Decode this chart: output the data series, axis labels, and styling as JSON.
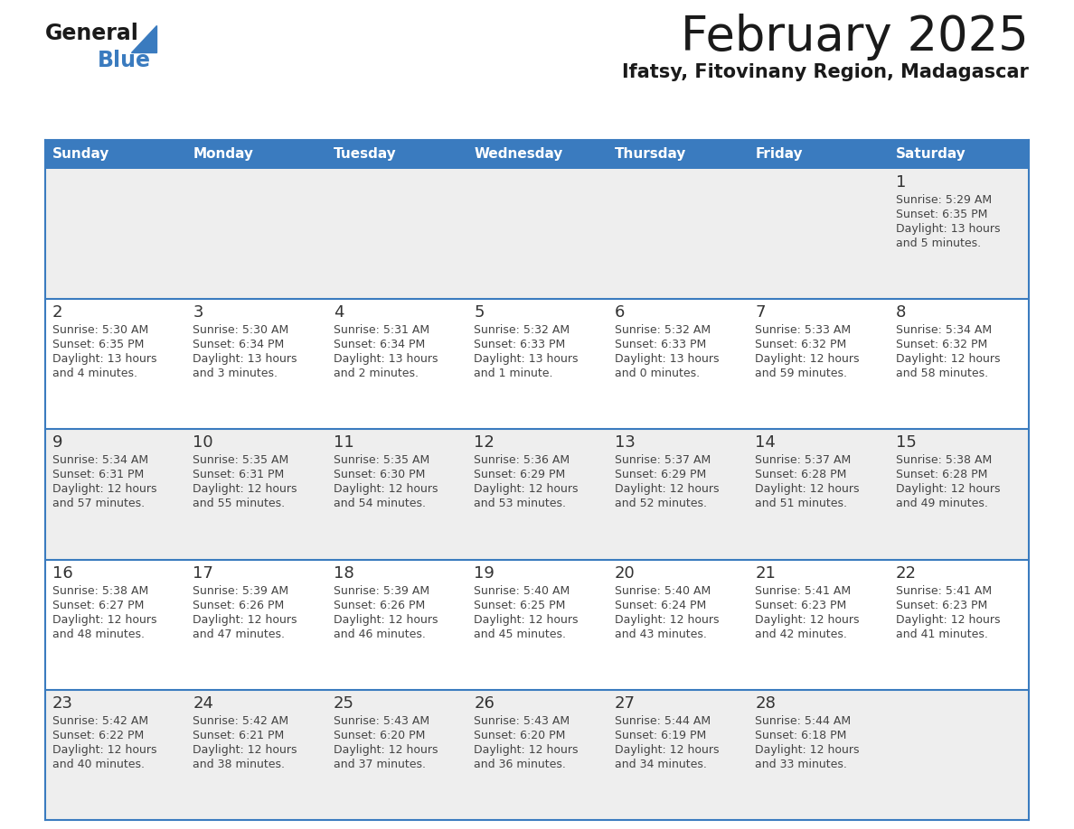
{
  "title": "February 2025",
  "subtitle": "Ifatsy, Fitovinany Region, Madagascar",
  "header_color": "#3a7bbf",
  "header_text_color": "#ffffff",
  "days_of_week": [
    "Sunday",
    "Monday",
    "Tuesday",
    "Wednesday",
    "Thursday",
    "Friday",
    "Saturday"
  ],
  "cell_bg_row0": "#eeeeee",
  "cell_bg_row1": "#ffffff",
  "cell_bg_row2": "#eeeeee",
  "cell_bg_row3": "#ffffff",
  "cell_bg_row4": "#eeeeee",
  "border_color": "#3a7bbf",
  "separator_color": "#3a7bbf",
  "day_num_color": "#333333",
  "text_color": "#444444",
  "calendar_data": [
    [
      null,
      null,
      null,
      null,
      null,
      null,
      {
        "day": "1",
        "sunrise": "5:29 AM",
        "sunset": "6:35 PM",
        "daylight_line1": "13 hours",
        "daylight_line2": "and 5 minutes."
      }
    ],
    [
      {
        "day": "2",
        "sunrise": "5:30 AM",
        "sunset": "6:35 PM",
        "daylight_line1": "13 hours",
        "daylight_line2": "and 4 minutes."
      },
      {
        "day": "3",
        "sunrise": "5:30 AM",
        "sunset": "6:34 PM",
        "daylight_line1": "13 hours",
        "daylight_line2": "and 3 minutes."
      },
      {
        "day": "4",
        "sunrise": "5:31 AM",
        "sunset": "6:34 PM",
        "daylight_line1": "13 hours",
        "daylight_line2": "and 2 minutes."
      },
      {
        "day": "5",
        "sunrise": "5:32 AM",
        "sunset": "6:33 PM",
        "daylight_line1": "13 hours",
        "daylight_line2": "and 1 minute."
      },
      {
        "day": "6",
        "sunrise": "5:32 AM",
        "sunset": "6:33 PM",
        "daylight_line1": "13 hours",
        "daylight_line2": "and 0 minutes."
      },
      {
        "day": "7",
        "sunrise": "5:33 AM",
        "sunset": "6:32 PM",
        "daylight_line1": "12 hours",
        "daylight_line2": "and 59 minutes."
      },
      {
        "day": "8",
        "sunrise": "5:34 AM",
        "sunset": "6:32 PM",
        "daylight_line1": "12 hours",
        "daylight_line2": "and 58 minutes."
      }
    ],
    [
      {
        "day": "9",
        "sunrise": "5:34 AM",
        "sunset": "6:31 PM",
        "daylight_line1": "12 hours",
        "daylight_line2": "and 57 minutes."
      },
      {
        "day": "10",
        "sunrise": "5:35 AM",
        "sunset": "6:31 PM",
        "daylight_line1": "12 hours",
        "daylight_line2": "and 55 minutes."
      },
      {
        "day": "11",
        "sunrise": "5:35 AM",
        "sunset": "6:30 PM",
        "daylight_line1": "12 hours",
        "daylight_line2": "and 54 minutes."
      },
      {
        "day": "12",
        "sunrise": "5:36 AM",
        "sunset": "6:29 PM",
        "daylight_line1": "12 hours",
        "daylight_line2": "and 53 minutes."
      },
      {
        "day": "13",
        "sunrise": "5:37 AM",
        "sunset": "6:29 PM",
        "daylight_line1": "12 hours",
        "daylight_line2": "and 52 minutes."
      },
      {
        "day": "14",
        "sunrise": "5:37 AM",
        "sunset": "6:28 PM",
        "daylight_line1": "12 hours",
        "daylight_line2": "and 51 minutes."
      },
      {
        "day": "15",
        "sunrise": "5:38 AM",
        "sunset": "6:28 PM",
        "daylight_line1": "12 hours",
        "daylight_line2": "and 49 minutes."
      }
    ],
    [
      {
        "day": "16",
        "sunrise": "5:38 AM",
        "sunset": "6:27 PM",
        "daylight_line1": "12 hours",
        "daylight_line2": "and 48 minutes."
      },
      {
        "day": "17",
        "sunrise": "5:39 AM",
        "sunset": "6:26 PM",
        "daylight_line1": "12 hours",
        "daylight_line2": "and 47 minutes."
      },
      {
        "day": "18",
        "sunrise": "5:39 AM",
        "sunset": "6:26 PM",
        "daylight_line1": "12 hours",
        "daylight_line2": "and 46 minutes."
      },
      {
        "day": "19",
        "sunrise": "5:40 AM",
        "sunset": "6:25 PM",
        "daylight_line1": "12 hours",
        "daylight_line2": "and 45 minutes."
      },
      {
        "day": "20",
        "sunrise": "5:40 AM",
        "sunset": "6:24 PM",
        "daylight_line1": "12 hours",
        "daylight_line2": "and 43 minutes."
      },
      {
        "day": "21",
        "sunrise": "5:41 AM",
        "sunset": "6:23 PM",
        "daylight_line1": "12 hours",
        "daylight_line2": "and 42 minutes."
      },
      {
        "day": "22",
        "sunrise": "5:41 AM",
        "sunset": "6:23 PM",
        "daylight_line1": "12 hours",
        "daylight_line2": "and 41 minutes."
      }
    ],
    [
      {
        "day": "23",
        "sunrise": "5:42 AM",
        "sunset": "6:22 PM",
        "daylight_line1": "12 hours",
        "daylight_line2": "and 40 minutes."
      },
      {
        "day": "24",
        "sunrise": "5:42 AM",
        "sunset": "6:21 PM",
        "daylight_line1": "12 hours",
        "daylight_line2": "and 38 minutes."
      },
      {
        "day": "25",
        "sunrise": "5:43 AM",
        "sunset": "6:20 PM",
        "daylight_line1": "12 hours",
        "daylight_line2": "and 37 minutes."
      },
      {
        "day": "26",
        "sunrise": "5:43 AM",
        "sunset": "6:20 PM",
        "daylight_line1": "12 hours",
        "daylight_line2": "and 36 minutes."
      },
      {
        "day": "27",
        "sunrise": "5:44 AM",
        "sunset": "6:19 PM",
        "daylight_line1": "12 hours",
        "daylight_line2": "and 34 minutes."
      },
      {
        "day": "28",
        "sunrise": "5:44 AM",
        "sunset": "6:18 PM",
        "daylight_line1": "12 hours",
        "daylight_line2": "and 33 minutes."
      },
      null
    ]
  ]
}
